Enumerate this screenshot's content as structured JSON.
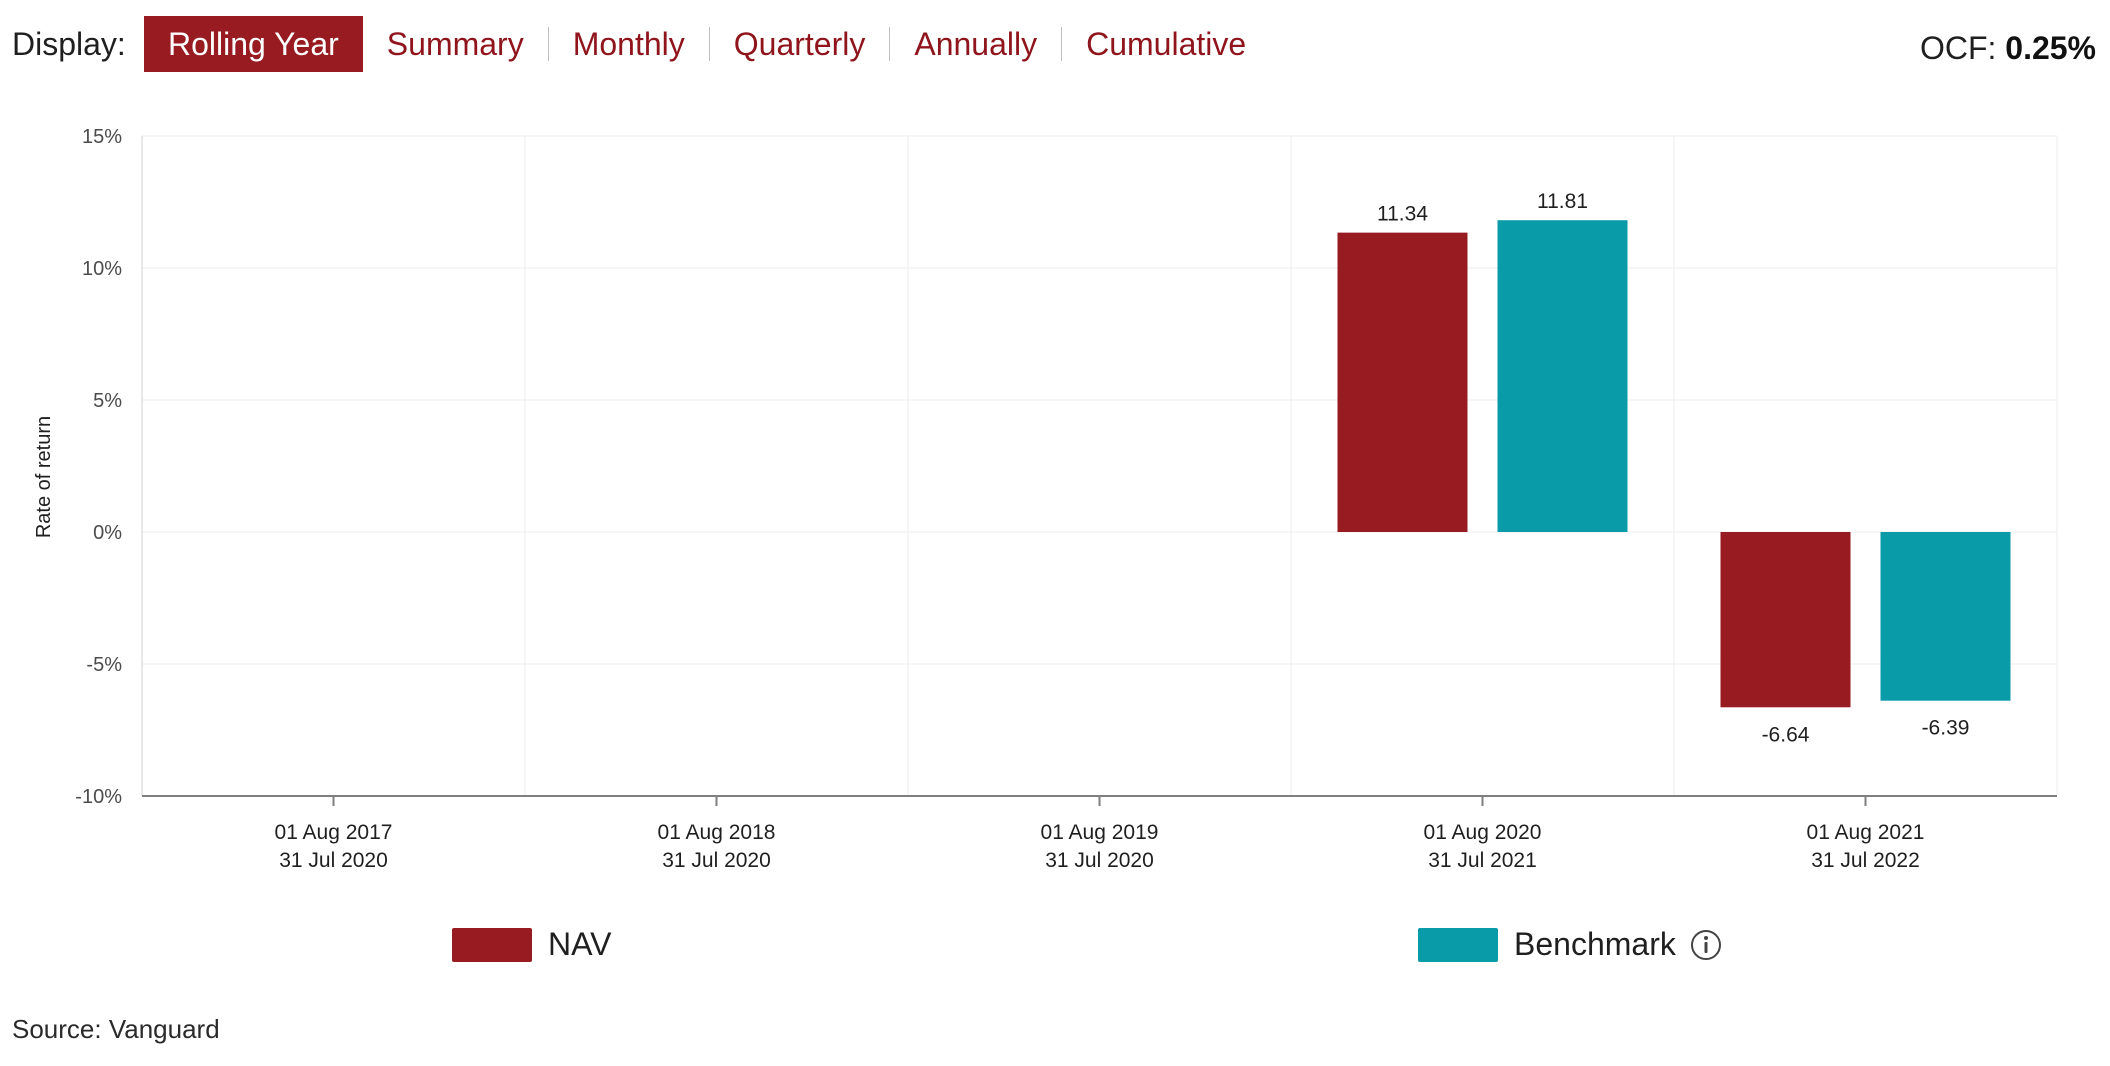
{
  "header": {
    "display_label": "Display:",
    "tabs": [
      {
        "label": "Rolling Year",
        "active": true
      },
      {
        "label": "Summary",
        "active": false
      },
      {
        "label": "Monthly",
        "active": false
      },
      {
        "label": "Quarterly",
        "active": false
      },
      {
        "label": "Annually",
        "active": false
      },
      {
        "label": "Cumulative",
        "active": false
      }
    ],
    "ocf_label": "OCF:",
    "ocf_value": "0.25%"
  },
  "chart_data": {
    "type": "bar",
    "title": "",
    "xlabel": "",
    "ylabel": "Rate of return",
    "ylim": [
      -10,
      15
    ],
    "yticks": [
      -10,
      -5,
      0,
      5,
      10,
      15
    ],
    "ytick_suffix": "%",
    "grid": "on",
    "legend_position": "bottom",
    "categories": [
      {
        "line1": "01 Aug 2017",
        "line2": "31 Jul 2020"
      },
      {
        "line1": "01 Aug 2018",
        "line2": "31 Jul 2020"
      },
      {
        "line1": "01 Aug 2019",
        "line2": "31 Jul 2020"
      },
      {
        "line1": "01 Aug 2020",
        "line2": "31 Jul 2021"
      },
      {
        "line1": "01 Aug 2021",
        "line2": "31 Jul 2022"
      }
    ],
    "series": [
      {
        "name": "NAV",
        "color": "#971b21",
        "values": [
          null,
          null,
          null,
          11.34,
          -6.64
        ],
        "labels": [
          "",
          "",
          "",
          "11.34",
          "-6.64"
        ]
      },
      {
        "name": "Benchmark",
        "color": "#0a9ba8",
        "values": [
          null,
          null,
          null,
          11.81,
          -6.39
        ],
        "labels": [
          "",
          "",
          "",
          "11.81",
          "-6.39"
        ]
      }
    ]
  },
  "legend": {
    "items": [
      {
        "label": "NAV",
        "color": "#971b21"
      },
      {
        "label": "Benchmark",
        "color": "#0a9ba8"
      }
    ]
  },
  "footer": {
    "source": "Source: Vanguard"
  },
  "icons": {
    "info": "info-icon"
  }
}
